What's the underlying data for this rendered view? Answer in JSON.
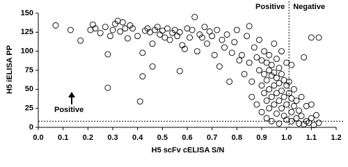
{
  "chart_data": {
    "type": "scatter",
    "xlabel": "H5 scFv cELISA S/N",
    "ylabel": "H5 iELISA PP",
    "color": "#000000",
    "x": [
      0.07,
      0.13,
      0.17,
      0.21,
      0.22,
      0.23,
      0.25,
      0.27,
      0.28,
      0.28,
      0.29,
      0.3,
      0.31,
      0.32,
      0.33,
      0.34,
      0.35,
      0.36,
      0.37,
      0.38,
      0.4,
      0.41,
      0.42,
      0.42,
      0.43,
      0.44,
      0.45,
      0.46,
      0.46,
      0.47,
      0.48,
      0.49,
      0.5,
      0.51,
      0.52,
      0.53,
      0.54,
      0.55,
      0.56,
      0.57,
      0.57,
      0.58,
      0.59,
      0.6,
      0.61,
      0.62,
      0.63,
      0.64,
      0.65,
      0.66,
      0.67,
      0.68,
      0.69,
      0.7,
      0.71,
      0.72,
      0.73,
      0.74,
      0.75,
      0.76,
      0.77,
      0.78,
      0.79,
      0.8,
      0.81,
      0.82,
      0.83,
      0.84,
      0.85,
      0.85,
      0.86,
      0.86,
      0.87,
      0.88,
      0.88,
      0.89,
      0.89,
      0.9,
      0.9,
      0.9,
      0.91,
      0.91,
      0.91,
      0.92,
      0.92,
      0.92,
      0.92,
      0.93,
      0.93,
      0.93,
      0.93,
      0.94,
      0.94,
      0.94,
      0.94,
      0.95,
      0.95,
      0.95,
      0.95,
      0.96,
      0.96,
      0.96,
      0.96,
      0.97,
      0.97,
      0.97,
      0.97,
      0.98,
      0.98,
      0.98,
      0.98,
      0.99,
      0.99,
      0.99,
      1.0,
      1.0,
      1.0,
      1.0,
      1.01,
      1.01,
      1.02,
      1.02,
      1.02,
      1.03,
      1.03,
      1.04,
      1.04,
      1.05,
      1.05,
      1.06,
      1.06,
      1.07,
      1.08,
      1.08,
      1.09,
      1.1,
      1.1,
      1.11,
      1.12,
      1.13,
      1.1,
      1.02,
      1.07,
      1.13
    ],
    "values": [
      134,
      128,
      114,
      128,
      135,
      130,
      124,
      132,
      96,
      52,
      120,
      128,
      136,
      140,
      126,
      138,
      130,
      117,
      134,
      130,
      120,
      34,
      67,
      98,
      127,
      130,
      125,
      110,
      80,
      128,
      132,
      122,
      127,
      118,
      130,
      115,
      124,
      128,
      120,
      74,
      125,
      108,
      103,
      130,
      118,
      128,
      145,
      100,
      122,
      118,
      132,
      110,
      126,
      120,
      95,
      128,
      80,
      115,
      105,
      122,
      60,
      98,
      112,
      128,
      88,
      95,
      70,
      120,
      85,
      133,
      60,
      40,
      105,
      92,
      30,
      115,
      75,
      88,
      55,
      20,
      100,
      70,
      45,
      85,
      62,
      35,
      12,
      95,
      75,
      50,
      25,
      68,
      82,
      40,
      8,
      110,
      72,
      55,
      30,
      90,
      65,
      45,
      18,
      78,
      58,
      35,
      5,
      100,
      70,
      48,
      25,
      62,
      40,
      15,
      85,
      55,
      30,
      10,
      60,
      45,
      38,
      20,
      8,
      50,
      28,
      35,
      12,
      22,
      5,
      40,
      15,
      4,
      28,
      8,
      6,
      30,
      12,
      3,
      16,
      118,
      118,
      82,
      92,
      6
    ],
    "xlim": [
      0,
      1.2
    ],
    "ylim": [
      0,
      150
    ],
    "xticks": [
      {
        "value": 0,
        "label": "0.0"
      },
      0.1,
      0.2,
      0.3,
      0.4,
      0.5,
      0.6,
      0.7,
      0.8,
      0.9,
      {
        "value": 1,
        "label": "1.0"
      },
      1.1,
      1.2
    ],
    "yticks": [
      0,
      25,
      50,
      75,
      100,
      125,
      150
    ],
    "vline": 1.01,
    "hline": 8,
    "annotations": [
      "Positive",
      "Negative",
      "Positive"
    ]
  }
}
